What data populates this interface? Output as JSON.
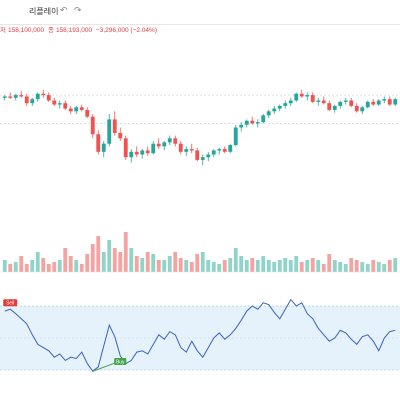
{
  "toolbar": {
    "title": "리플레이",
    "undo_icon": "undo-icon",
    "redo_icon": "redo-icon"
  },
  "ohlc": {
    "open_label": "저",
    "open_value": "158,100,000",
    "close_label": "종",
    "close_value": "158,193,000",
    "change": "−3,296,000 (−2.04%)"
  },
  "colors": {
    "up": "#26a69a",
    "down": "#ef5350",
    "rsi_line": "#3a62b8",
    "rsi_band": "#e5f1fb",
    "signal_sell": "#e53935",
    "signal_buy": "#43a047"
  },
  "signals": {
    "sell_label": "Sell",
    "buy_label": "Buy"
  },
  "chart_data": {
    "type": "candlestick",
    "candles_norm": [
      [
        0.72,
        0.74,
        0.7,
        0.73
      ],
      [
        0.73,
        0.76,
        0.71,
        0.72
      ],
      [
        0.72,
        0.75,
        0.7,
        0.74
      ],
      [
        0.74,
        0.77,
        0.72,
        0.73
      ],
      [
        0.73,
        0.75,
        0.66,
        0.68
      ],
      [
        0.68,
        0.72,
        0.66,
        0.71
      ],
      [
        0.71,
        0.76,
        0.69,
        0.75
      ],
      [
        0.75,
        0.78,
        0.72,
        0.74
      ],
      [
        0.74,
        0.76,
        0.69,
        0.7
      ],
      [
        0.7,
        0.72,
        0.66,
        0.67
      ],
      [
        0.67,
        0.7,
        0.64,
        0.68
      ],
      [
        0.68,
        0.7,
        0.63,
        0.64
      ],
      [
        0.64,
        0.66,
        0.6,
        0.62
      ],
      [
        0.62,
        0.66,
        0.6,
        0.65
      ],
      [
        0.65,
        0.67,
        0.62,
        0.63
      ],
      [
        0.63,
        0.65,
        0.57,
        0.58
      ],
      [
        0.58,
        0.6,
        0.42,
        0.45
      ],
      [
        0.45,
        0.48,
        0.3,
        0.32
      ],
      [
        0.32,
        0.4,
        0.28,
        0.38
      ],
      [
        0.38,
        0.6,
        0.36,
        0.56
      ],
      [
        0.56,
        0.62,
        0.44,
        0.46
      ],
      [
        0.46,
        0.5,
        0.4,
        0.42
      ],
      [
        0.42,
        0.44,
        0.26,
        0.28
      ],
      [
        0.28,
        0.34,
        0.24,
        0.32
      ],
      [
        0.32,
        0.36,
        0.28,
        0.3
      ],
      [
        0.3,
        0.34,
        0.27,
        0.33
      ],
      [
        0.33,
        0.36,
        0.29,
        0.31
      ],
      [
        0.31,
        0.4,
        0.3,
        0.38
      ],
      [
        0.38,
        0.42,
        0.34,
        0.36
      ],
      [
        0.36,
        0.4,
        0.33,
        0.39
      ],
      [
        0.39,
        0.44,
        0.37,
        0.42
      ],
      [
        0.42,
        0.44,
        0.36,
        0.38
      ],
      [
        0.38,
        0.4,
        0.3,
        0.32
      ],
      [
        0.32,
        0.36,
        0.29,
        0.34
      ],
      [
        0.34,
        0.38,
        0.31,
        0.33
      ],
      [
        0.33,
        0.35,
        0.25,
        0.26
      ],
      [
        0.26,
        0.3,
        0.22,
        0.28
      ],
      [
        0.28,
        0.32,
        0.25,
        0.3
      ],
      [
        0.3,
        0.34,
        0.28,
        0.33
      ],
      [
        0.33,
        0.35,
        0.3,
        0.34
      ],
      [
        0.34,
        0.36,
        0.31,
        0.32
      ],
      [
        0.32,
        0.38,
        0.31,
        0.37
      ],
      [
        0.37,
        0.52,
        0.36,
        0.5
      ],
      [
        0.5,
        0.54,
        0.47,
        0.52
      ],
      [
        0.52,
        0.56,
        0.5,
        0.55
      ],
      [
        0.55,
        0.58,
        0.52,
        0.53
      ],
      [
        0.53,
        0.56,
        0.5,
        0.54
      ],
      [
        0.54,
        0.6,
        0.53,
        0.59
      ],
      [
        0.59,
        0.63,
        0.57,
        0.62
      ],
      [
        0.62,
        0.66,
        0.6,
        0.64
      ],
      [
        0.64,
        0.67,
        0.62,
        0.66
      ],
      [
        0.66,
        0.7,
        0.64,
        0.68
      ],
      [
        0.68,
        0.72,
        0.66,
        0.7
      ],
      [
        0.7,
        0.76,
        0.69,
        0.75
      ],
      [
        0.75,
        0.78,
        0.72,
        0.73
      ],
      [
        0.73,
        0.76,
        0.7,
        0.74
      ],
      [
        0.74,
        0.76,
        0.68,
        0.69
      ],
      [
        0.69,
        0.72,
        0.66,
        0.7
      ],
      [
        0.7,
        0.73,
        0.67,
        0.68
      ],
      [
        0.68,
        0.7,
        0.62,
        0.63
      ],
      [
        0.63,
        0.67,
        0.61,
        0.66
      ],
      [
        0.66,
        0.7,
        0.64,
        0.69
      ],
      [
        0.69,
        0.72,
        0.67,
        0.7
      ],
      [
        0.7,
        0.72,
        0.65,
        0.66
      ],
      [
        0.66,
        0.68,
        0.61,
        0.62
      ],
      [
        0.62,
        0.66,
        0.6,
        0.65
      ],
      [
        0.65,
        0.7,
        0.64,
        0.69
      ],
      [
        0.69,
        0.71,
        0.66,
        0.67
      ],
      [
        0.67,
        0.71,
        0.66,
        0.7
      ],
      [
        0.7,
        0.73,
        0.68,
        0.71
      ],
      [
        0.71,
        0.73,
        0.66,
        0.67
      ],
      [
        0.67,
        0.72,
        0.66,
        0.71
      ]
    ],
    "volume_norm": [
      0.3,
      0.2,
      0.25,
      0.4,
      0.2,
      0.3,
      0.5,
      0.35,
      0.2,
      0.25,
      0.3,
      0.6,
      0.4,
      0.3,
      0.2,
      0.45,
      0.7,
      0.9,
      0.5,
      0.8,
      0.6,
      0.5,
      1.0,
      0.6,
      0.4,
      0.35,
      0.5,
      0.45,
      0.3,
      0.3,
      0.4,
      0.5,
      0.35,
      0.3,
      0.25,
      0.45,
      0.5,
      0.3,
      0.25,
      0.2,
      0.3,
      0.35,
      0.6,
      0.4,
      0.3,
      0.35,
      0.3,
      0.4,
      0.3,
      0.25,
      0.3,
      0.35,
      0.3,
      0.4,
      0.25,
      0.3,
      0.35,
      0.3,
      0.2,
      0.45,
      0.3,
      0.25,
      0.2,
      0.35,
      0.3,
      0.25,
      0.2,
      0.3,
      0.25,
      0.2,
      0.3,
      0.35
    ],
    "rsi_norm": [
      0.92,
      0.95,
      0.88,
      0.8,
      0.72,
      0.55,
      0.4,
      0.35,
      0.3,
      0.2,
      0.25,
      0.15,
      0.2,
      0.18,
      0.28,
      0.1,
      -0.02,
      0.05,
      0.38,
      0.7,
      0.52,
      0.22,
      0.1,
      0.15,
      0.28,
      0.3,
      0.25,
      0.4,
      0.55,
      0.48,
      0.6,
      0.55,
      0.35,
      0.28,
      0.45,
      0.3,
      0.2,
      0.35,
      0.5,
      0.58,
      0.48,
      0.55,
      0.65,
      0.78,
      0.92,
      1.0,
      0.95,
      1.05,
      1.02,
      0.9,
      0.8,
      0.95,
      1.1,
      1.0,
      1.05,
      0.88,
      0.8,
      0.65,
      0.55,
      0.45,
      0.5,
      0.62,
      0.58,
      0.48,
      0.4,
      0.52,
      0.55,
      0.45,
      0.3,
      0.5,
      0.6,
      0.62
    ]
  }
}
